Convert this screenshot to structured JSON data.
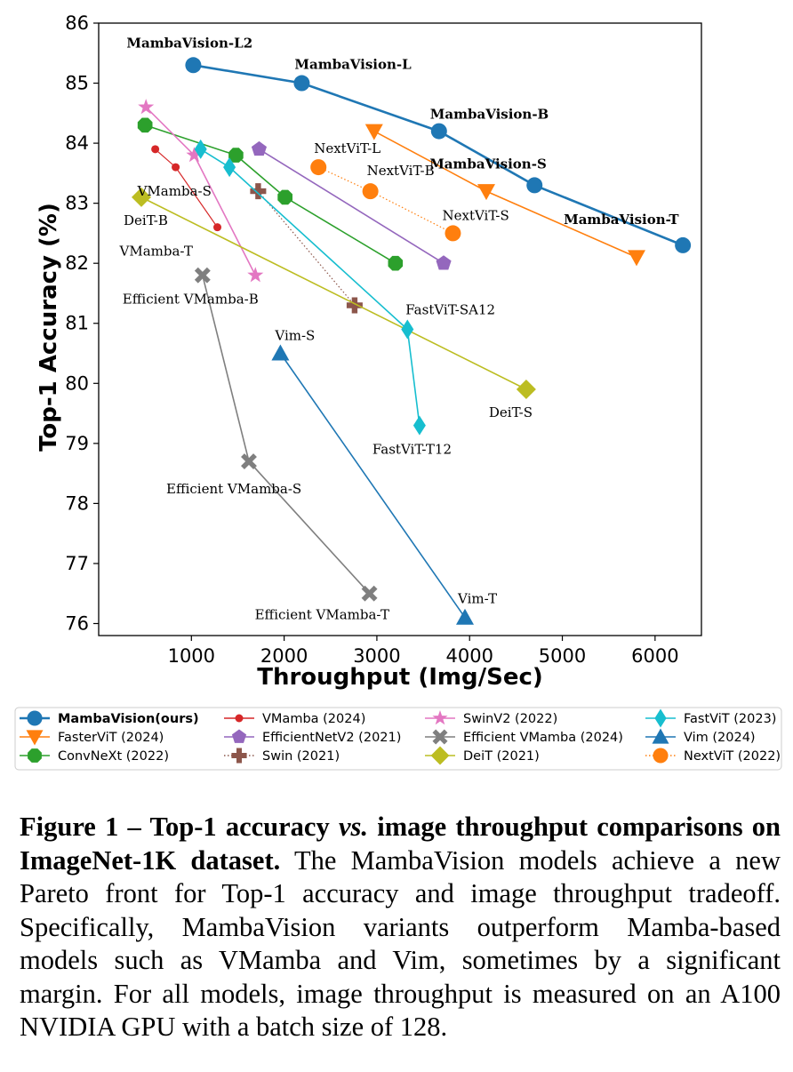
{
  "chart_data": {
    "type": "line",
    "xlabel": "Throughput (Img/Sec)",
    "ylabel": "Top-1 Accuracy (%)",
    "xlim": [
      0,
      6500
    ],
    "ylim": [
      75.8,
      86.0
    ],
    "xticks": [
      1000,
      2000,
      3000,
      4000,
      5000,
      6000
    ],
    "yticks": [
      76,
      77,
      78,
      79,
      80,
      81,
      82,
      83,
      84,
      85,
      86
    ],
    "grid": false,
    "legend_position": "bottom",
    "series": [
      {
        "name": "MambaVision(ours)",
        "bold": true,
        "color": "#1f77b4",
        "marker": "circle",
        "line": "solid",
        "points": [
          {
            "x": 1020,
            "y": 85.3,
            "label": "MambaVision-L2"
          },
          {
            "x": 2190,
            "y": 85.0,
            "label": "MambaVision-L"
          },
          {
            "x": 3670,
            "y": 84.2,
            "label": "MambaVision-B"
          },
          {
            "x": 4700,
            "y": 83.3,
            "label": "MambaVision-S"
          },
          {
            "x": 6300,
            "y": 82.3,
            "label": "MambaVision-T"
          }
        ]
      },
      {
        "name": "FasterViT (2024)",
        "color": "#ff7f0e",
        "marker": "triangle-down",
        "line": "solid",
        "points": [
          {
            "x": 2970,
            "y": 84.2
          },
          {
            "x": 4180,
            "y": 83.2
          },
          {
            "x": 5800,
            "y": 82.1
          }
        ]
      },
      {
        "name": "ConvNeXt (2022)",
        "color": "#2ca02c",
        "marker": "octagon",
        "line": "solid",
        "points": [
          {
            "x": 500,
            "y": 84.3
          },
          {
            "x": 1480,
            "y": 83.8
          },
          {
            "x": 2010,
            "y": 83.1
          },
          {
            "x": 3200,
            "y": 82.0
          }
        ]
      },
      {
        "name": "VMamba (2024)",
        "color": "#d62728",
        "marker": "small-circle",
        "line": "solid",
        "points": [
          {
            "x": 610,
            "y": 83.9
          },
          {
            "x": 830,
            "y": 83.6
          },
          {
            "x": 1280,
            "y": 82.6
          }
        ]
      },
      {
        "name": "EfficientNetV2 (2021)",
        "color": "#9467bd",
        "marker": "pentagon",
        "line": "solid",
        "points": [
          {
            "x": 1730,
            "y": 83.9
          },
          {
            "x": 3720,
            "y": 82.0
          }
        ]
      },
      {
        "name": "Swin (2021)",
        "color": "#8c564b",
        "marker": "plus",
        "line": "dotted",
        "points": [
          {
            "x": 1720,
            "y": 83.2
          },
          {
            "x": 2760,
            "y": 81.3
          }
        ]
      },
      {
        "name": "SwinV2 (2022)",
        "color": "#e377c2",
        "marker": "star",
        "line": "solid",
        "points": [
          {
            "x": 510,
            "y": 84.6
          },
          {
            "x": 1030,
            "y": 83.8
          },
          {
            "x": 1690,
            "y": 81.8
          }
        ]
      },
      {
        "name": "Efficient VMamba (2024)",
        "color": "#7f7f7f",
        "marker": "x",
        "line": "solid",
        "points": [
          {
            "x": 1120,
            "y": 81.8
          },
          {
            "x": 1620,
            "y": 78.7
          },
          {
            "x": 2920,
            "y": 76.5
          }
        ]
      },
      {
        "name": "DeiT (2021)",
        "color": "#bcbd22",
        "marker": "diamond",
        "line": "solid",
        "points": [
          {
            "x": 460,
            "y": 83.1
          },
          {
            "x": 4610,
            "y": 79.9
          }
        ]
      },
      {
        "name": "FastViT (2023)",
        "color": "#17becf",
        "marker": "thin-diamond",
        "line": "solid",
        "points": [
          {
            "x": 1100,
            "y": 83.9
          },
          {
            "x": 1410,
            "y": 83.6
          },
          {
            "x": 3330,
            "y": 80.9
          },
          {
            "x": 3460,
            "y": 79.3
          }
        ]
      },
      {
        "name": "Vim (2024)",
        "color": "#1f77b4",
        "marker": "triangle-up",
        "line": "solid",
        "points": [
          {
            "x": 1960,
            "y": 80.5
          },
          {
            "x": 3950,
            "y": 76.1
          }
        ]
      },
      {
        "name": "NextViT (2022)",
        "color": "#ff7f0e",
        "marker": "circle",
        "line": "dotted",
        "points": [
          {
            "x": 2370,
            "y": 83.6
          },
          {
            "x": 2930,
            "y": 83.2
          },
          {
            "x": 3820,
            "y": 82.5
          }
        ]
      }
    ],
    "annotations": [
      {
        "text": "MambaVision-L2",
        "x": 1020,
        "y": 85.3,
        "bold": true
      },
      {
        "text": "MambaVision-L",
        "x": 2190,
        "y": 85.0,
        "bold": true
      },
      {
        "text": "MambaVision-B",
        "x": 3670,
        "y": 84.2,
        "bold": true
      },
      {
        "text": "MambaVision-S",
        "x": 4700,
        "y": 83.3,
        "bold": true
      },
      {
        "text": "MambaVision-T",
        "x": 6300,
        "y": 82.3,
        "bold": true
      },
      {
        "text": "NextViT-L",
        "x": 2370,
        "y": 83.6,
        "bold": false
      },
      {
        "text": "NextViT-B",
        "x": 2930,
        "y": 83.2,
        "bold": false
      },
      {
        "text": "NextViT-S",
        "x": 3820,
        "y": 82.5,
        "bold": false
      },
      {
        "text": "VMamba-S",
        "x": 830,
        "y": 83.6,
        "bold": false
      },
      {
        "text": "VMamba-T",
        "x": 1280,
        "y": 82.6,
        "bold": false
      },
      {
        "text": "DeiT-B",
        "x": 460,
        "y": 83.1,
        "bold": false
      },
      {
        "text": "Efficient VMamba-B",
        "x": 1120,
        "y": 81.8,
        "bold": false
      },
      {
        "text": "FastViT-SA12",
        "x": 3330,
        "y": 80.9,
        "bold": false
      },
      {
        "text": "Vim-S",
        "x": 1960,
        "y": 80.5,
        "bold": false
      },
      {
        "text": "DeiT-S",
        "x": 4610,
        "y": 79.9,
        "bold": false
      },
      {
        "text": "FastViT-T12",
        "x": 3460,
        "y": 79.3,
        "bold": false
      },
      {
        "text": "Efficient VMamba-S",
        "x": 1620,
        "y": 78.7,
        "bold": false
      },
      {
        "text": "Vim-T",
        "x": 3950,
        "y": 76.1,
        "bold": false
      },
      {
        "text": "Efficient VMamba-T",
        "x": 2920,
        "y": 76.5,
        "bold": false
      }
    ]
  },
  "caption": {
    "title": "Figure 1 – Top-1 accuracy",
    "title_italic": "vs.",
    "title_rest": "image throughput comparisons on ImageNet-1K dataset.",
    "body": "The MambaVision models achieve a new Pareto front for Top-1 accuracy and image throughput tradeoff. Specifically, MambaVision variants outperform Mamba-based models such as VMamba and Vim, sometimes by a significant margin. For all models, image throughput is measured on an A100 NVIDIA GPU with a batch size of 128."
  }
}
